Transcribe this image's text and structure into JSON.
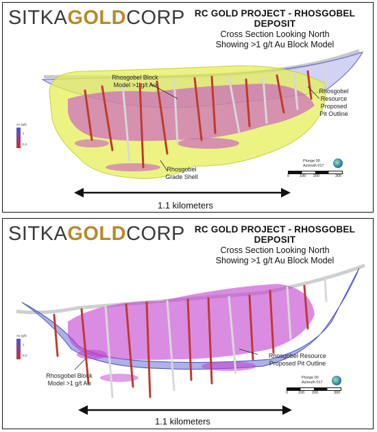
{
  "logo": {
    "word1": "SITKA",
    "word2": "GOLD",
    "word3": "CORP"
  },
  "panels": [
    {
      "title": "RC GOLD PROJECT - RHOSGOBEL DEPOSIT",
      "subtitle1": "Cross Section Looking North",
      "subtitle2": "Showing >1 g/t Au Block Model",
      "label_block_model": "Rhosgobel Block\nModel >1 g/t Au",
      "label_pit": "Rhosgobel\nResource\nProposed\nPit Outline",
      "label_grade_shell": "Rhosgobel\nGrade Shell",
      "distance": "1.1 kilometers",
      "legend": {
        "title": "Au (g/t)",
        "v1": "1",
        "v2": "0.2"
      },
      "scale": {
        "plunge": "Plunge 00",
        "azimuth": "Azimuth 017",
        "ticks": [
          "0",
          "100",
          "200",
          "300"
        ]
      }
    },
    {
      "title": "RC GOLD PROJECT - RHOSGOBEL DEPOSIT",
      "subtitle1": "Cross Section Looking North",
      "subtitle2": "Showing >1 g/t Au Block Model",
      "label_block_model": "Rhosgobel Block\nModel >1 g/t Au",
      "label_pit": "Rhosgobel Resource\nProposed Pit Outline",
      "distance": "1.1 kilometers",
      "legend": {
        "title": "Au (g/t)",
        "v1": "1",
        "v2": "0.2"
      },
      "scale": {
        "plunge": "Plunge 00",
        "azimuth": "Azimuth 017",
        "ticks": [
          "0",
          "100",
          "200",
          "300"
        ]
      }
    }
  ],
  "colors": {
    "gold": "#b8892b",
    "grade_shell": "#e6ef5a",
    "pit_outline": "#6b6fd1",
    "block_model": "#c23fd0",
    "drill_red": "#c0392b"
  }
}
